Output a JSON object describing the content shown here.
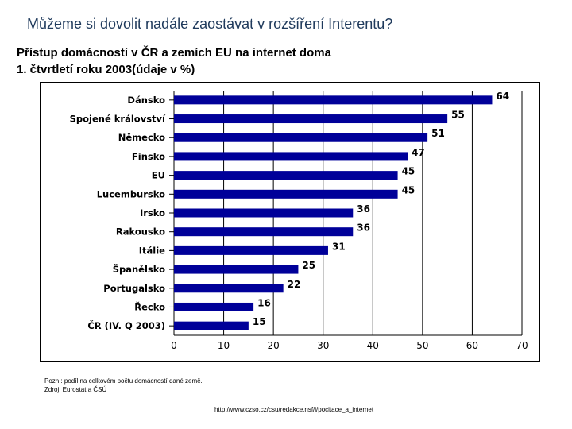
{
  "slide": {
    "title": "Můžeme si dovolit nadále zaostávat v rozšíření Interentu?",
    "subtitle_line1": "Přístup domácností v ČR a zemích EU na internet doma",
    "subtitle_line2": "1. čtvrtletí roku 2003(údaje v %)"
  },
  "footer": {
    "note_line1": "Pozn.: podíl na celkovém počtu domácností dané země.",
    "note_line2": "Zdroj: Eurostat a ČSÚ",
    "url": "http://www.czso.cz/csu/redakce.nsf/i/pocitace_a_internet"
  },
  "chart_data": {
    "type": "bar",
    "orientation": "horizontal",
    "categories": [
      "Dánsko",
      "Spojené království",
      "Německo",
      "Finsko",
      "EU",
      "Lucembursko",
      "Irsko",
      "Rakousko",
      "Itálie",
      "Španělsko",
      "Portugalsko",
      "Řecko",
      "ČR (IV. Q 2003)"
    ],
    "values": [
      64,
      55,
      51,
      47,
      45,
      45,
      36,
      36,
      31,
      25,
      22,
      16,
      15
    ],
    "xlim": [
      0,
      70
    ],
    "xticks": [
      0,
      10,
      20,
      30,
      40,
      50,
      60,
      70
    ],
    "grid": true,
    "legend": "none",
    "bar_color": "#000099",
    "title": "",
    "xlabel": "",
    "ylabel": ""
  }
}
